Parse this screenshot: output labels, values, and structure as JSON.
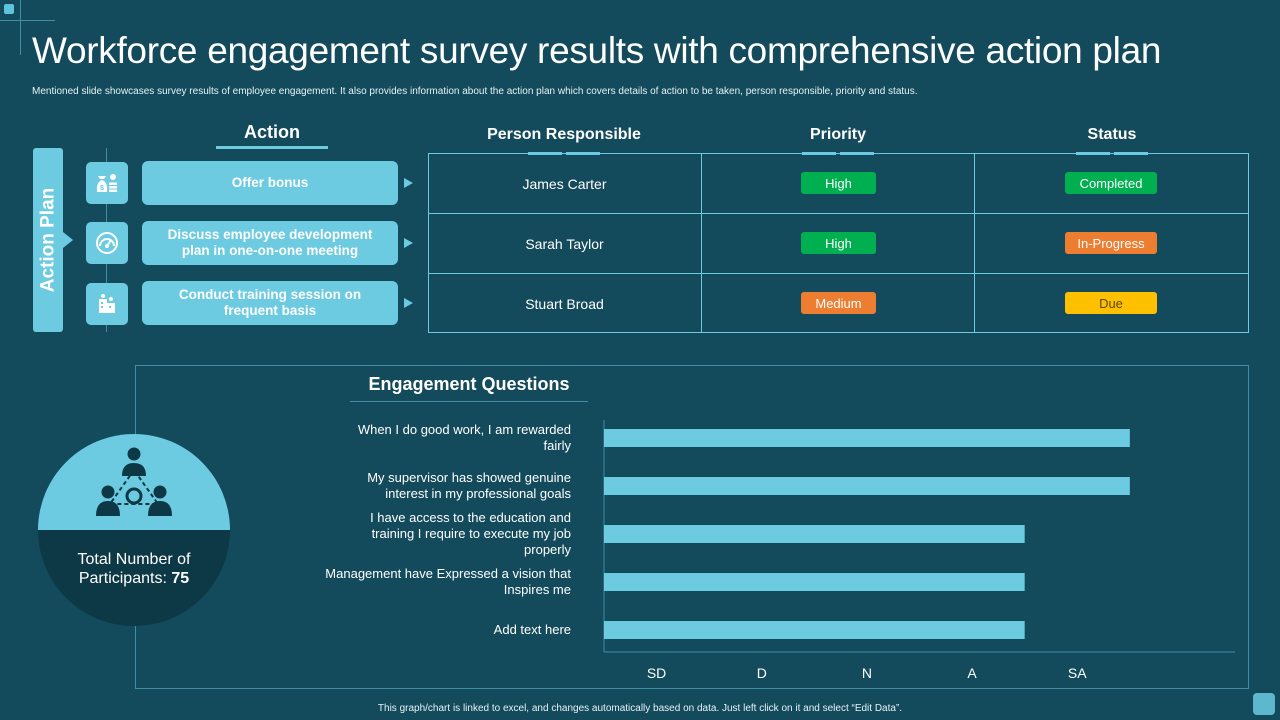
{
  "title": "Workforce engagement survey results with comprehensive action plan",
  "subtitle": "Mentioned slide showcases survey results of employee engagement. It also provides information about the action plan which covers details of action to be taken, person responsible, priority and status.",
  "action_plan": {
    "side_label": "Action Plan",
    "header": "Action",
    "items": [
      {
        "label": "Offer bonus",
        "icon": "money-bag-icon"
      },
      {
        "label": "Discuss employee development plan in one-on-one meeting",
        "icon": "speedometer-icon"
      },
      {
        "label": "Conduct training session on frequent basis",
        "icon": "building-icon"
      }
    ]
  },
  "table": {
    "headers": [
      "Person Responsible",
      "Priority",
      "Status"
    ],
    "rows": [
      {
        "person": "James Carter",
        "priority": "High",
        "priority_color": "#00b050",
        "status": "Completed",
        "status_color": "#00b050"
      },
      {
        "person": "Sarah Taylor",
        "priority": "High",
        "priority_color": "#00b050",
        "status": "In-Progress",
        "status_color": "#ed7d31"
      },
      {
        "person": "Stuart Broad",
        "priority": "Medium",
        "priority_color": "#ed7d31",
        "status": "Due",
        "status_color": "#ffc000"
      }
    ]
  },
  "participants": {
    "label": "Total Number of Participants:",
    "value": "75",
    "icon": "team-network-icon"
  },
  "chart_data": {
    "type": "bar",
    "orientation": "horizontal",
    "title": "Engagement Questions",
    "categories": [
      "When I do good work, I am rewarded fairly",
      "My supervisor has showed genuine interest in my professional goals",
      "I have access to the education and training I require to execute my job properly",
      "Management have Expressed a vision that Inspires me",
      "Add text here"
    ],
    "values": [
      5,
      5,
      4,
      4,
      4
    ],
    "xticks": [
      "SD",
      "D",
      "N",
      "A",
      "SA"
    ],
    "xlim": [
      0,
      6
    ],
    "bar_color": "#6ccbe0",
    "grid": false
  },
  "footer": "This graph/chart is linked to excel, and changes automatically based on data. Just left click on it and select “Edit Data”.",
  "colors": {
    "background": "#134a5c",
    "accent": "#6ccbe0",
    "dark": "#0d3946"
  }
}
